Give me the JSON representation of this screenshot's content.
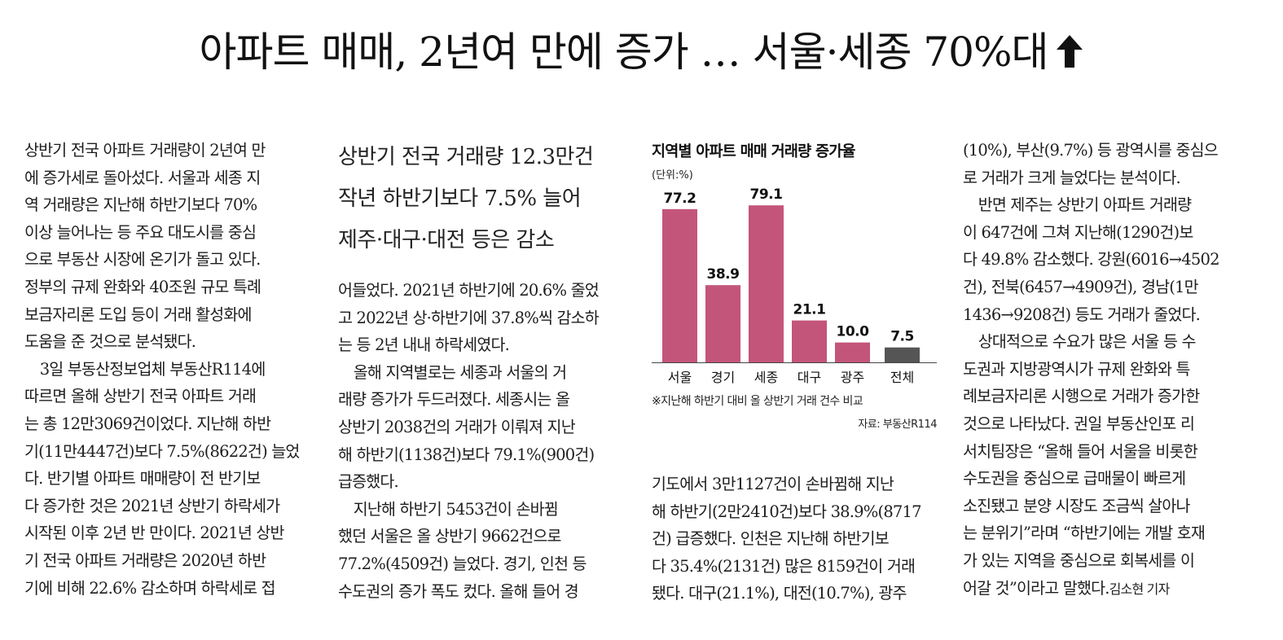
{
  "headline": "아파트 매매, 2년여 만에 증가 … 서울·세종 70%대",
  "subhead": [
    "상반기 전국 거래량 12.3만건",
    "작년 하반기보다 7.5% 늘어",
    "제주·대구·대전 등은 감소"
  ],
  "columns": {
    "col1": [
      "상반기 전국 아파트 거래량이 2년여 만",
      "에 증가세로 돌아섰다. 서울과 세종 지",
      "역 거래량은 지난해 하반기보다 70%",
      "이상 늘어나는 등 주요 대도시를 중심",
      "으로 부동산 시장에 온기가 돌고 있다.",
      "정부의 규제 완화와 40조원 규모 특례",
      "보금자리론 도입 등이 거래 활성화에",
      "도움을 준 것으로 분석됐다.",
      "　3일 부동산정보업체 부동산R114에",
      "따르면 올해 상반기 전국 아파트 거래",
      "는 총 12만3069건이었다. 지난해 하반",
      "기(11만4447건)보다 7.5%(8622건) 늘었",
      "다. 반기별 아파트 매매량이 전 반기보",
      "다 증가한 것은 2021년 상반기 하락세가",
      "시작된 이후 2년 반 만이다. 2021년 상반",
      "기 전국 아파트 거래량은 2020년 하반",
      "기에 비해 22.6% 감소하며 하락세로 접"
    ],
    "col2": [
      "어들었다. 2021년 하반기에 20.6% 줄었",
      "고 2022년 상·하반기에 37.8%씩 감소하",
      "는 등 2년 내내 하락세였다.",
      "　올해 지역별로는 세종과 서울의 거",
      "래량 증가가 두드러졌다. 세종시는 올",
      "상반기 2038건의 거래가 이뤄져 지난",
      "해 하반기(1138건)보다 79.1%(900건)",
      "급증했다.",
      "　지난해 하반기 5453건이 손바뀜",
      "했던 서울은 올 상반기 9662건으로",
      "77.2%(4509건) 늘었다. 경기, 인천 등",
      "수도권의 증가 폭도 컸다. 올해 들어 경"
    ],
    "col3": [
      "기도에서 3만1127건이 손바뀜해 지난",
      "해 하반기(2만2410건)보다 38.9%(8717",
      "건) 급증했다. 인천은 지난해 하반기보",
      "다 35.4%(2131건) 많은 8159건이 거래",
      "됐다. 대구(21.1%), 대전(10.7%), 광주"
    ],
    "col4": [
      "(10%), 부산(9.7%) 등 광역시를 중심으",
      "로 거래가 크게 늘었다는 분석이다.",
      "　반면 제주는 상반기 아파트 거래량",
      "이 647건에 그쳐 지난해(1290건)보",
      "다 49.8% 감소했다. 강원(6016→4502",
      "건), 전북(6457→4909건), 경남(1만",
      "1436→9208건) 등도 거래가 줄었다.",
      "　상대적으로 수요가 많은 서울 등 수",
      "도권과 지방광역시가 규제 완화와 특",
      "례보금자리론 시행으로 거래가 증가한",
      "것으로 나타났다. 권일 부동산인포 리",
      "서치팀장은 “올해 들어 서울을 비롯한",
      "수도권을 중심으로 급매물이 빠르게",
      "소진됐고 분양 시장도 조금씩 살아나",
      "는 분위기”라며 “하반기에는 개발 호재",
      "가 있는 지역을 중심으로 회복세를 이"
    ],
    "col4_last": "어갈 것”이라고 말했다.",
    "byline": "김소현 기자"
  },
  "chart_data": {
    "type": "bar",
    "title": "지역별 아파트 매매 거래량 증가율",
    "unit": "(단위:%)",
    "categories": [
      "서울",
      "경기",
      "세종",
      "대구",
      "광주",
      "전체"
    ],
    "values": [
      77.2,
      38.9,
      79.1,
      21.1,
      10.0,
      7.5
    ],
    "value_labels": [
      "77.2",
      "38.9",
      "79.1",
      "21.1",
      "10.0",
      "7.5"
    ],
    "colors": [
      "#c4557a",
      "#c4557a",
      "#c4557a",
      "#c4557a",
      "#c4557a",
      "#555555"
    ],
    "note": "※지난해 하반기 대비 올 상반기 거래 건수 비교",
    "source": "자료: 부동산R114",
    "ylim": [
      0,
      80
    ]
  }
}
